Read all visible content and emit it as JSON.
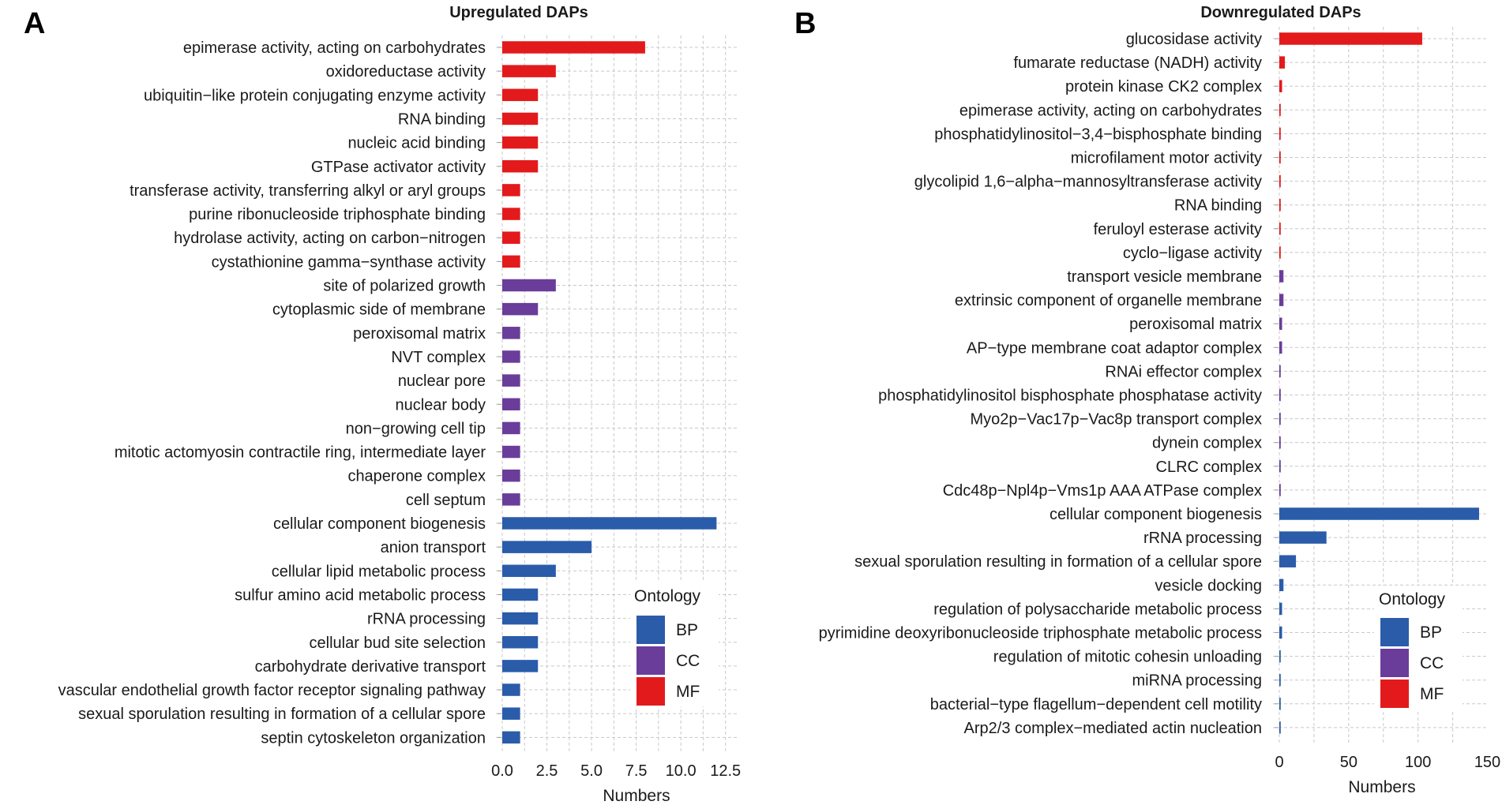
{
  "colors": {
    "BP": "#2a5caa",
    "CC": "#6a3d9a",
    "MF": "#e31a1c"
  },
  "chart_data": [
    {
      "panel_letter": "A",
      "type": "bar",
      "orientation": "horizontal",
      "title": "Upregulated DAPs",
      "xlabel": "Numbers",
      "ylabel": "",
      "xlim": [
        0,
        13
      ],
      "xticks": [
        0,
        2.5,
        5,
        7.5,
        10,
        12.5
      ],
      "xtick_labels": [
        "0.0",
        "2.5",
        "5.0",
        "7.5",
        "10.0",
        "12.5"
      ],
      "grid": true,
      "legend_position": "bottom-right",
      "legend": {
        "title": "Ontology",
        "entries": [
          {
            "key": "BP",
            "label": "BP"
          },
          {
            "key": "CC",
            "label": "CC"
          },
          {
            "key": "MF",
            "label": "MF"
          }
        ]
      },
      "bars": [
        {
          "label": "epimerase activity, acting on carbohydrates",
          "value": 8,
          "ontology": "MF"
        },
        {
          "label": "oxidoreductase activity",
          "value": 3,
          "ontology": "MF"
        },
        {
          "label": "ubiquitin−like protein conjugating enzyme activity",
          "value": 2,
          "ontology": "MF"
        },
        {
          "label": "RNA binding",
          "value": 2,
          "ontology": "MF"
        },
        {
          "label": "nucleic acid binding",
          "value": 2,
          "ontology": "MF"
        },
        {
          "label": "GTPase activator activity",
          "value": 2,
          "ontology": "MF"
        },
        {
          "label": "transferase activity, transferring alkyl or aryl groups",
          "value": 1,
          "ontology": "MF"
        },
        {
          "label": "purine ribonucleoside triphosphate binding",
          "value": 1,
          "ontology": "MF"
        },
        {
          "label": "hydrolase activity, acting on carbon−nitrogen",
          "value": 1,
          "ontology": "MF"
        },
        {
          "label": "cystathionine gamma−synthase activity",
          "value": 1,
          "ontology": "MF"
        },
        {
          "label": "site of polarized growth",
          "value": 3,
          "ontology": "CC"
        },
        {
          "label": "cytoplasmic side of membrane",
          "value": 2,
          "ontology": "CC"
        },
        {
          "label": "peroxisomal matrix",
          "value": 1,
          "ontology": "CC"
        },
        {
          "label": "NVT complex",
          "value": 1,
          "ontology": "CC"
        },
        {
          "label": "nuclear pore",
          "value": 1,
          "ontology": "CC"
        },
        {
          "label": "nuclear body",
          "value": 1,
          "ontology": "CC"
        },
        {
          "label": "non−growing cell tip",
          "value": 1,
          "ontology": "CC"
        },
        {
          "label": "mitotic actomyosin contractile ring, intermediate layer",
          "value": 1,
          "ontology": "CC"
        },
        {
          "label": "chaperone complex",
          "value": 1,
          "ontology": "CC"
        },
        {
          "label": "cell septum",
          "value": 1,
          "ontology": "CC"
        },
        {
          "label": "cellular component biogenesis",
          "value": 12,
          "ontology": "BP"
        },
        {
          "label": "anion transport",
          "value": 5,
          "ontology": "BP"
        },
        {
          "label": "cellular lipid metabolic process",
          "value": 3,
          "ontology": "BP"
        },
        {
          "label": "sulfur amino acid metabolic process",
          "value": 2,
          "ontology": "BP"
        },
        {
          "label": "rRNA processing",
          "value": 2,
          "ontology": "BP"
        },
        {
          "label": "cellular bud site selection",
          "value": 2,
          "ontology": "BP"
        },
        {
          "label": "carbohydrate derivative transport",
          "value": 2,
          "ontology": "BP"
        },
        {
          "label": "vascular endothelial growth factor receptor signaling pathway",
          "value": 1,
          "ontology": "BP"
        },
        {
          "label": "sexual sporulation resulting in formation of a cellular spore",
          "value": 1,
          "ontology": "BP"
        },
        {
          "label": "septin cytoskeleton organization",
          "value": 1,
          "ontology": "BP"
        }
      ]
    },
    {
      "panel_letter": "B",
      "type": "bar",
      "orientation": "horizontal",
      "title": "Downregulated DAPs",
      "xlabel": "Numbers",
      "ylabel": "",
      "xlim": [
        0,
        148
      ],
      "xticks": [
        0,
        50,
        100,
        150
      ],
      "xtick_labels": [
        "0",
        "50",
        "100",
        "150"
      ],
      "grid": true,
      "legend_position": "bottom-right",
      "legend": {
        "title": "Ontology",
        "entries": [
          {
            "key": "BP",
            "label": "BP"
          },
          {
            "key": "CC",
            "label": "CC"
          },
          {
            "key": "MF",
            "label": "MF"
          }
        ]
      },
      "bars": [
        {
          "label": "glucosidase activity",
          "value": 103,
          "ontology": "MF"
        },
        {
          "label": "fumarate reductase (NADH) activity",
          "value": 4,
          "ontology": "MF"
        },
        {
          "label": "protein kinase CK2 complex",
          "value": 2,
          "ontology": "MF"
        },
        {
          "label": "epimerase activity, acting on carbohydrates",
          "value": 1,
          "ontology": "MF"
        },
        {
          "label": "phosphatidylinositol−3,4−bisphosphate binding",
          "value": 1,
          "ontology": "MF"
        },
        {
          "label": "microfilament motor activity",
          "value": 1,
          "ontology": "MF"
        },
        {
          "label": "glycolipid 1,6−alpha−mannosyltransferase activity",
          "value": 1,
          "ontology": "MF"
        },
        {
          "label": "RNA binding",
          "value": 1,
          "ontology": "MF"
        },
        {
          "label": "feruloyl esterase activity",
          "value": 1,
          "ontology": "MF"
        },
        {
          "label": "cyclo−ligase activity",
          "value": 1,
          "ontology": "MF"
        },
        {
          "label": "transport vesicle membrane",
          "value": 3,
          "ontology": "CC"
        },
        {
          "label": "extrinsic component of organelle membrane",
          "value": 3,
          "ontology": "CC"
        },
        {
          "label": "peroxisomal matrix",
          "value": 2,
          "ontology": "CC"
        },
        {
          "label": "AP−type membrane coat adaptor complex",
          "value": 2,
          "ontology": "CC"
        },
        {
          "label": "RNAi effector complex",
          "value": 1,
          "ontology": "CC"
        },
        {
          "label": "phosphatidylinositol bisphosphate phosphatase activity",
          "value": 1,
          "ontology": "CC"
        },
        {
          "label": "Myo2p−Vac17p−Vac8p transport complex",
          "value": 1,
          "ontology": "CC"
        },
        {
          "label": "dynein complex",
          "value": 1,
          "ontology": "CC"
        },
        {
          "label": "CLRC complex",
          "value": 1,
          "ontology": "CC"
        },
        {
          "label": "Cdc48p−Npl4p−Vms1p AAA ATPase complex",
          "value": 1,
          "ontology": "CC"
        },
        {
          "label": "cellular component biogenesis",
          "value": 144,
          "ontology": "BP"
        },
        {
          "label": "rRNA processing",
          "value": 34,
          "ontology": "BP"
        },
        {
          "label": "sexual sporulation resulting in formation of a cellular spore",
          "value": 12,
          "ontology": "BP"
        },
        {
          "label": "vesicle docking",
          "value": 3,
          "ontology": "BP"
        },
        {
          "label": "regulation of polysaccharide metabolic process",
          "value": 2,
          "ontology": "BP"
        },
        {
          "label": "pyrimidine deoxyribonucleoside triphosphate metabolic process",
          "value": 2,
          "ontology": "BP"
        },
        {
          "label": "regulation of mitotic cohesin unloading",
          "value": 1,
          "ontology": "BP"
        },
        {
          "label": "miRNA processing",
          "value": 1,
          "ontology": "BP"
        },
        {
          "label": "bacterial−type flagellum−dependent cell motility",
          "value": 1,
          "ontology": "BP"
        },
        {
          "label": "Arp2/3 complex−mediated actin nucleation",
          "value": 1,
          "ontology": "BP"
        }
      ]
    }
  ]
}
